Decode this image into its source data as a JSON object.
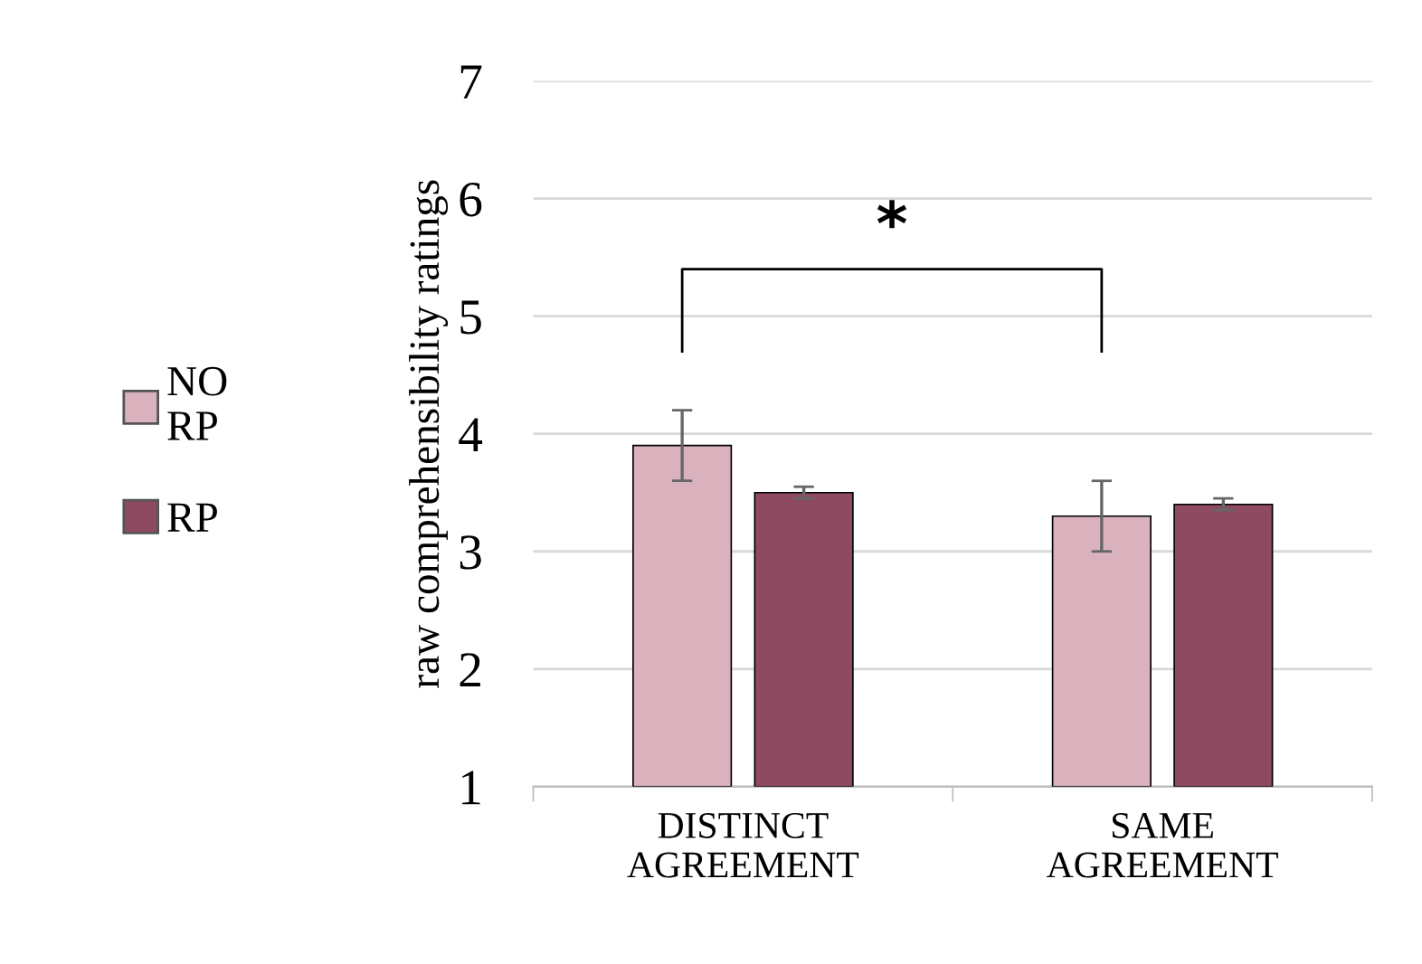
{
  "chart_data": {
    "type": "bar",
    "ylabel": "raw comprehensibility ratings",
    "categories": [
      "DISTINCT AGREEMENT",
      "SAME AGREEMENT"
    ],
    "series": [
      {
        "name": "NO RP",
        "color": "#d9b2be",
        "values": [
          3.9,
          3.3
        ],
        "errors": [
          0.3,
          0.3
        ]
      },
      {
        "name": "RP",
        "color": "#8e4a60",
        "values": [
          3.5,
          3.4
        ],
        "errors": [
          0.05,
          0.05
        ]
      }
    ],
    "ylim": [
      1,
      7
    ],
    "yticks": [
      1,
      2,
      3,
      4,
      5,
      6,
      7
    ],
    "grid": "y",
    "legend": "left",
    "annotations": [
      "*"
    ]
  }
}
